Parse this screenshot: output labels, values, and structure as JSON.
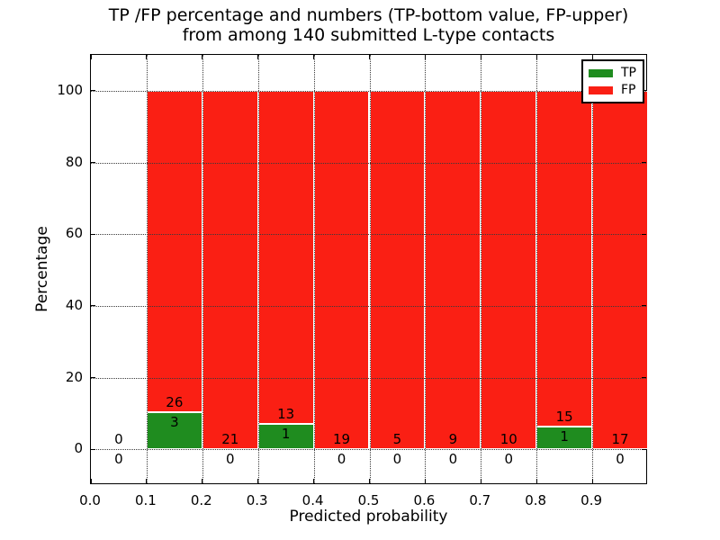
{
  "figure": {
    "title_line1": "TP /FP percentage and numbers (TP-bottom value, FP-upper)",
    "title_line2": "from among 140 submitted L-type contacts",
    "xlabel": "Predicted probability",
    "ylabel": "Percentage"
  },
  "chart_data": {
    "type": "bar",
    "stacked": true,
    "normalized": "each non-empty bin bar spans 0-100%; numeric labels are raw counts (TP bottom value, FP upper value)",
    "title": "TP /FP percentage and numbers (TP-bottom value, FP-upper) from among 140 submitted L-type contacts",
    "xlabel": "Predicted probability",
    "ylabel": "Percentage",
    "xlim": [
      0.0,
      1.0
    ],
    "ylim": [
      -10,
      110
    ],
    "xticks": [
      "0.0",
      "0.1",
      "0.2",
      "0.3",
      "0.4",
      "0.5",
      "0.6",
      "0.7",
      "0.8",
      "0.9"
    ],
    "yticks": [
      0,
      20,
      40,
      60,
      80,
      100
    ],
    "grid": "dotted",
    "legend_position": "upper right",
    "total_contacts": 140,
    "series": [
      {
        "name": "TP",
        "color": "#1f8c1f"
      },
      {
        "name": "FP",
        "color": "#fa1f14"
      }
    ],
    "bins": [
      {
        "range": [
          0.0,
          0.1
        ],
        "tp": 0,
        "fp": 0
      },
      {
        "range": [
          0.1,
          0.2
        ],
        "tp": 3,
        "fp": 26
      },
      {
        "range": [
          0.2,
          0.3
        ],
        "tp": 0,
        "fp": 21
      },
      {
        "range": [
          0.3,
          0.4
        ],
        "tp": 1,
        "fp": 13
      },
      {
        "range": [
          0.4,
          0.5
        ],
        "tp": 0,
        "fp": 19
      },
      {
        "range": [
          0.5,
          0.6
        ],
        "tp": 0,
        "fp": 5
      },
      {
        "range": [
          0.6,
          0.7
        ],
        "tp": 0,
        "fp": 9
      },
      {
        "range": [
          0.7,
          0.8
        ],
        "tp": 0,
        "fp": 10
      },
      {
        "range": [
          0.8,
          0.9
        ],
        "tp": 1,
        "fp": 15
      },
      {
        "range": [
          0.9,
          1.0
        ],
        "tp": 0,
        "fp": 17
      }
    ]
  }
}
